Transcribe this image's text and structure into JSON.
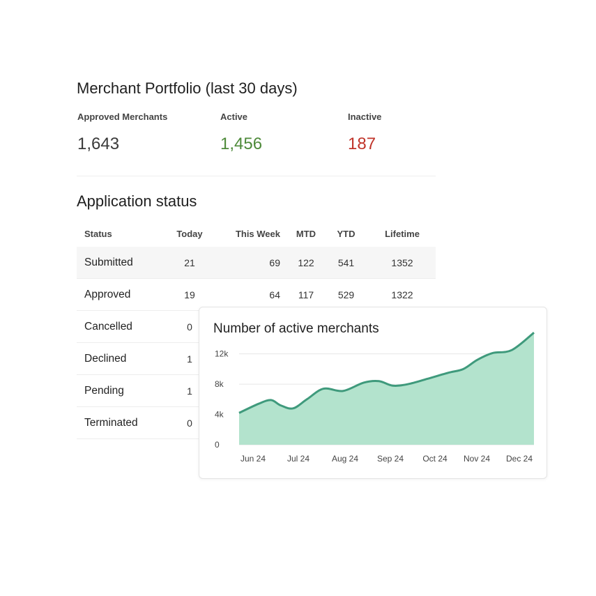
{
  "portfolio": {
    "title": "Merchant Portfolio (last 30 days)",
    "approved_label": "Approved Merchants",
    "approved_value": "1,643",
    "active_label": "Active",
    "active_value": "1,456",
    "inactive_label": "Inactive",
    "inactive_value": "187",
    "colors": {
      "active": "#4e8a3a",
      "inactive": "#c0342a"
    }
  },
  "applications": {
    "title": "Application status",
    "columns": [
      "Status",
      "Today",
      "This Week",
      "MTD",
      "YTD",
      "Lifetime"
    ],
    "rows": [
      {
        "status": "Submitted",
        "today": "21",
        "week": "69",
        "mtd": "122",
        "ytd": "541",
        "lifetime": "1352"
      },
      {
        "status": "Approved",
        "today": "19",
        "week": "64",
        "mtd": "117",
        "ytd": "529",
        "lifetime": "1322"
      },
      {
        "status": "Cancelled",
        "today": "0"
      },
      {
        "status": "Declined",
        "today": "1"
      },
      {
        "status": "Pending",
        "today": "1"
      },
      {
        "status": "Terminated",
        "today": "0"
      }
    ]
  },
  "chart": {
    "title": "Number of active merchants",
    "colors": {
      "fill": "#b3e3cd",
      "line": "#3f9a7c",
      "grid": "#e6e6e6"
    }
  },
  "chart_data": {
    "type": "area",
    "title": "Number of active merchants",
    "xlabel": "",
    "ylabel": "",
    "ylim": [
      0,
      12000
    ],
    "yticks": [
      0,
      4000,
      8000,
      12000
    ],
    "ytick_labels": [
      "0",
      "4k",
      "8k",
      "12k"
    ],
    "xtick_labels": [
      "Jun 24",
      "Jul 24",
      "Aug 24",
      "Sep 24",
      "Oct 24",
      "Nov 24",
      "Dec 24"
    ],
    "grid": true,
    "x": [
      "Jun 1 24",
      "Jun 15 24",
      "Jun 24 24",
      "Jul 1 24",
      "Jul 10 24",
      "Jul 20 24",
      "Aug 1 24",
      "Aug 15 24",
      "Aug 30 24",
      "Sep 10 24",
      "Sep 20 24",
      "Oct 1 24",
      "Oct 15 24",
      "Oct 30 24",
      "Nov 10 24",
      "Nov 20 24",
      "Dec 1 24",
      "Dec 15 24",
      "Dec 31 24"
    ],
    "values": [
      4200,
      5400,
      5900,
      5200,
      4800,
      6000,
      7400,
      7100,
      8200,
      8400,
      7800,
      8000,
      8700,
      9500,
      10000,
      11200,
      12100,
      12500,
      14800
    ]
  }
}
